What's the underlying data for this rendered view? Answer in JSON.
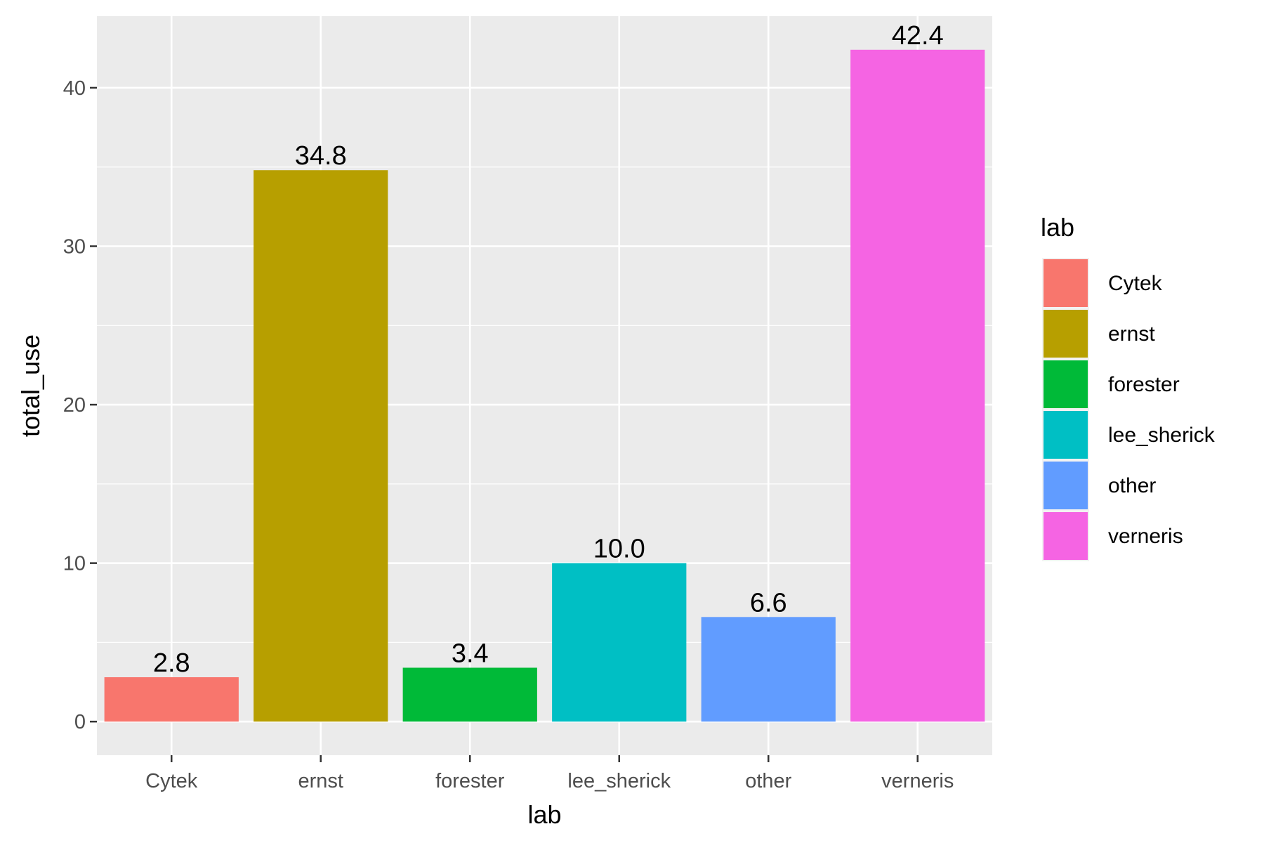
{
  "chart_data": {
    "type": "bar",
    "categories": [
      "Cytek",
      "ernst",
      "forester",
      "lee_sherick",
      "other",
      "verneris"
    ],
    "values": [
      2.8,
      34.8,
      3.4,
      10.0,
      6.6,
      42.4
    ],
    "value_labels": [
      "2.8",
      "34.8",
      "3.4",
      "10.0",
      "6.6",
      "42.4"
    ],
    "colors": [
      "#F8766D",
      "#B79F00",
      "#00BA38",
      "#00BFC4",
      "#619CFF",
      "#F564E3"
    ],
    "xlabel": "lab",
    "ylabel": "total_use",
    "ylim": [
      -2.12,
      44.52
    ],
    "yticks": [
      0,
      10,
      20,
      30,
      40
    ],
    "grid": true,
    "panel_background": "#EBEBEB",
    "legend": {
      "title": "lab",
      "position": "right",
      "entries": [
        "Cytek",
        "ernst",
        "forester",
        "lee_sherick",
        "other",
        "verneris"
      ]
    }
  }
}
